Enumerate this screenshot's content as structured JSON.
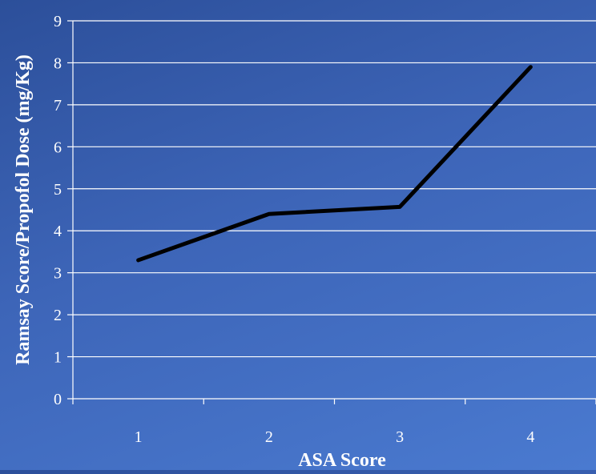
{
  "chart_data": {
    "type": "line",
    "categories": [
      "1",
      "2",
      "3",
      "4"
    ],
    "series": [
      {
        "values": [
          3.3,
          4.4,
          4.57,
          7.9
        ]
      }
    ],
    "xlabel": "ASA Score",
    "ylabel": "Ramsay Score/Propofol Dose (mg/Kg)",
    "ylim": [
      0,
      9
    ],
    "yticks": [
      0,
      1,
      2,
      3,
      4,
      5,
      6,
      7,
      8,
      9
    ],
    "grid": true,
    "legend": "none",
    "colors": {
      "line": "#000000",
      "grid": "#ffffff",
      "text": "#ffffff"
    }
  }
}
